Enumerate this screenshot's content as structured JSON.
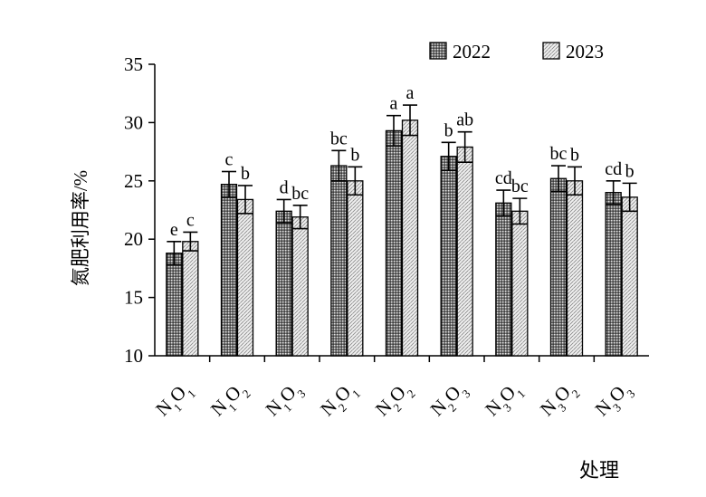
{
  "chart_data": {
    "type": "bar",
    "title": "",
    "xlabel": "处理",
    "ylabel": "氮肥利用率/%",
    "ylim": [
      10,
      35
    ],
    "yticks": [
      10,
      15,
      20,
      25,
      30,
      35
    ],
    "grid": false,
    "legend_position": "top-right",
    "categories": [
      {
        "base": "N",
        "s1": "1",
        "mid": "O",
        "s2": "1"
      },
      {
        "base": "N",
        "s1": "1",
        "mid": "O",
        "s2": "2"
      },
      {
        "base": "N",
        "s1": "1",
        "mid": "O",
        "s2": "3"
      },
      {
        "base": "N",
        "s1": "2",
        "mid": "O",
        "s2": "1"
      },
      {
        "base": "N",
        "s1": "2",
        "mid": "O",
        "s2": "2"
      },
      {
        "base": "N",
        "s1": "2",
        "mid": "O",
        "s2": "3"
      },
      {
        "base": "N",
        "s1": "3",
        "mid": "O",
        "s2": "1"
      },
      {
        "base": "N",
        "s1": "3",
        "mid": "O",
        "s2": "2"
      },
      {
        "base": "N",
        "s1": "3",
        "mid": "O",
        "s2": "3"
      }
    ],
    "series": [
      {
        "name": "2022",
        "pattern": "dots-dark",
        "values": [
          18.8,
          24.7,
          22.4,
          26.3,
          29.3,
          27.1,
          23.1,
          25.2,
          24.0
        ],
        "errors": [
          1.0,
          1.1,
          1.0,
          1.3,
          1.3,
          1.2,
          1.1,
          1.1,
          1.0
        ],
        "letters": [
          "e",
          "c",
          "d",
          "bc",
          "a",
          "b",
          "cd",
          "bc",
          "cd"
        ]
      },
      {
        "name": "2023",
        "pattern": "hatch-light",
        "values": [
          19.8,
          23.4,
          21.9,
          25.0,
          30.2,
          27.9,
          22.4,
          25.0,
          23.6
        ],
        "errors": [
          0.8,
          1.2,
          1.0,
          1.2,
          1.3,
          1.3,
          1.1,
          1.2,
          1.2
        ],
        "letters": [
          "c",
          "b",
          "bc",
          "b",
          "a",
          "ab",
          "bc",
          "b",
          "b"
        ]
      }
    ]
  }
}
